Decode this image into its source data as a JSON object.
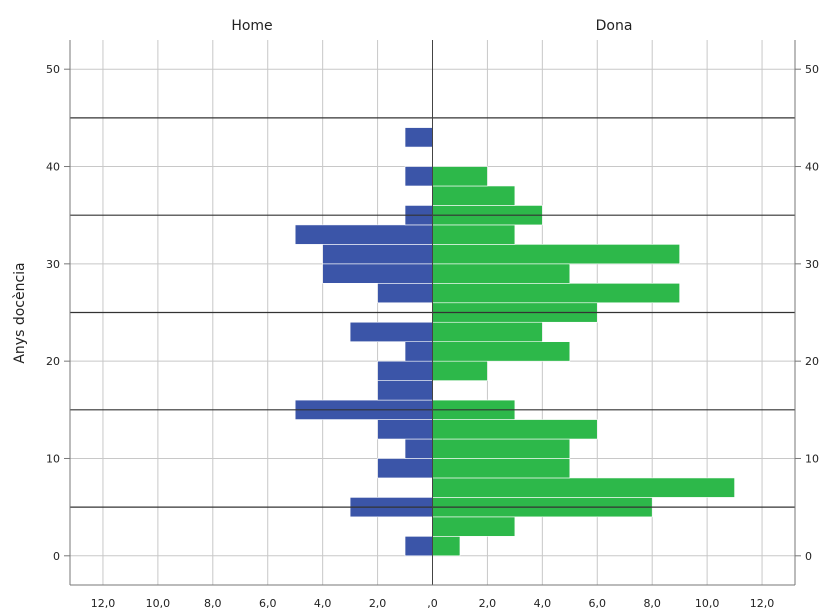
{
  "chart_data": {
    "type": "bar",
    "subtype": "population-pyramid",
    "panels": [
      "Home",
      "Dona"
    ],
    "ylabel": "Anys docència",
    "xlabel": "",
    "y_ticks": [
      0,
      10,
      20,
      30,
      40,
      50
    ],
    "y_tick_labels": [
      "0",
      "10",
      "20",
      "30",
      "40",
      "50"
    ],
    "ylim": [
      -3,
      53
    ],
    "x_ticks": [
      12,
      10,
      8,
      6,
      4,
      2,
      0,
      2,
      4,
      6,
      8,
      10,
      12
    ],
    "x_tick_labels": [
      "12,0",
      "10,0",
      "8,0",
      "6,0",
      "4,0",
      "2,0",
      ",0",
      "2,0",
      "4,0",
      "6,0",
      "8,0",
      "10,0",
      "12,0"
    ],
    "xlim": [
      -13.2,
      13.2
    ],
    "bin_width": 2,
    "bins": [
      0,
      2,
      4,
      6,
      8,
      10,
      12,
      14,
      16,
      18,
      20,
      22,
      24,
      26,
      28,
      30,
      32,
      34,
      36,
      38,
      40,
      42
    ],
    "reference_lines_y": [
      5,
      15,
      25,
      35,
      45
    ],
    "grid": true,
    "series": [
      {
        "name": "Home",
        "color": "#3b55a8",
        "values": [
          1,
          0,
          3,
          0,
          2,
          1,
          2,
          5,
          2,
          2,
          1,
          3,
          0,
          2,
          4,
          4,
          5,
          1,
          0,
          1,
          0,
          1
        ]
      },
      {
        "name": "Dona",
        "color": "#2db84a",
        "values": [
          1,
          3,
          8,
          11,
          5,
          5,
          6,
          3,
          0,
          2,
          5,
          4,
          6,
          9,
          5,
          9,
          3,
          4,
          3,
          2,
          0,
          0
        ]
      }
    ]
  }
}
